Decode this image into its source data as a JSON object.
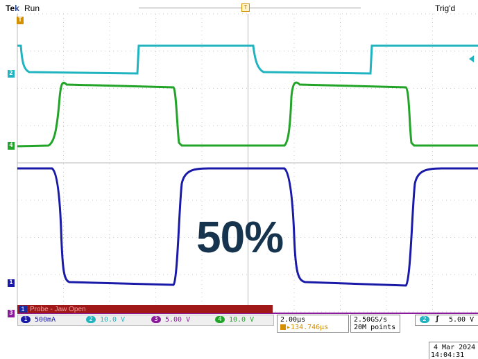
{
  "header": {
    "brand_t": "Te",
    "brand_k": "k",
    "run_status": "Run",
    "trigger_status": "Trig'd",
    "trigger_marker": "T"
  },
  "channel_markers": {
    "ch1": "1",
    "ch2": "2",
    "ch3": "3",
    "ch4": "4",
    "trig": "T"
  },
  "colors": {
    "ch1": "#1a1aa8",
    "ch2": "#1fb4bf",
    "ch3": "#8a1a9a",
    "ch4": "#22a428",
    "grid": "#c8c8c8",
    "probe_alert": "#a01818"
  },
  "probe_message": {
    "channel": "1",
    "text": "Probe - Jaw Open"
  },
  "channels": [
    {
      "num": "1",
      "scale": "500mA"
    },
    {
      "num": "2",
      "scale": "10.0 V"
    },
    {
      "num": "3",
      "scale": "5.00 V"
    },
    {
      "num": "4",
      "scale": "10.0 V"
    }
  ],
  "timebase": {
    "scale": "2.00µs",
    "position": "134.746µs"
  },
  "acquisition": {
    "sample_rate": "2.50GS/s",
    "record_length": "20M points"
  },
  "trigger": {
    "source": "2",
    "slope_icon": "rising-edge-icon",
    "level": "5.00 V"
  },
  "datetime": {
    "date": "4 Mar 2024",
    "time": "14:04:31"
  },
  "overlay": {
    "duty": "50%"
  }
}
